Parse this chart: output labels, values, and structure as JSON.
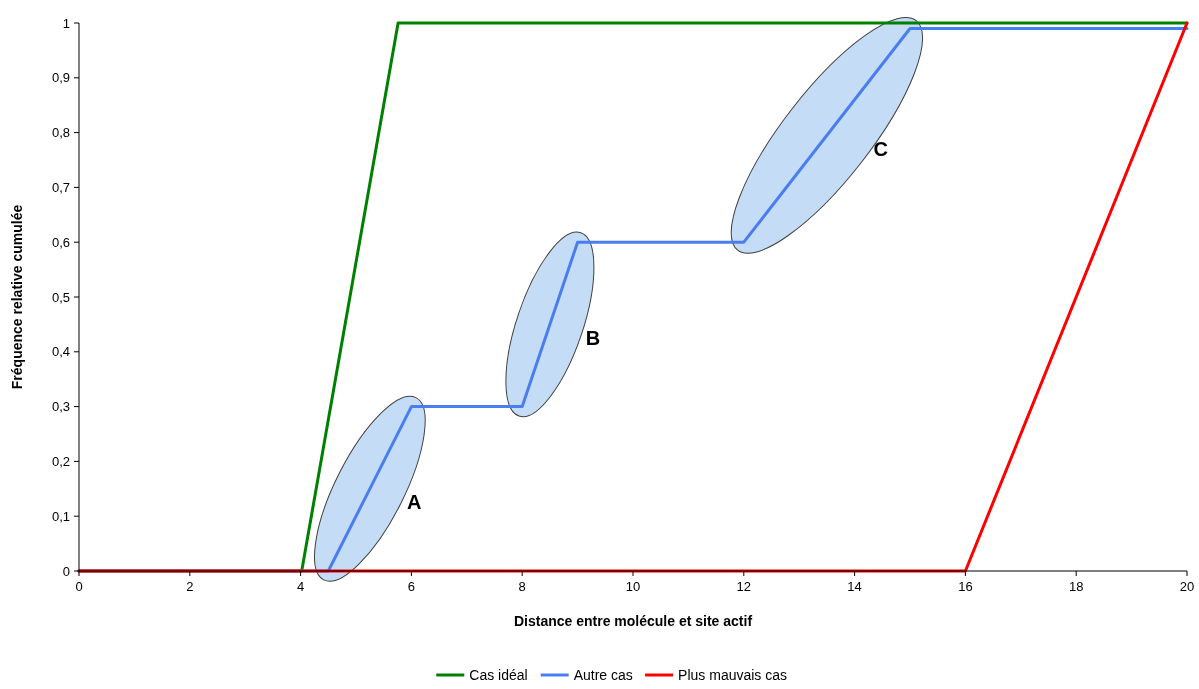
{
  "chart_data": {
    "type": "line",
    "xlabel": "Distance entre molécule et site actif",
    "ylabel": "Fréquence relative cumulée",
    "xlim": [
      0,
      20
    ],
    "xticks": [
      0,
      2,
      4,
      6,
      8,
      10,
      12,
      14,
      16,
      18,
      20
    ],
    "ylim": [
      0,
      1
    ],
    "yticks": [
      0,
      {
        "value": 0.1,
        "label": "0,1"
      },
      {
        "value": 0.2,
        "label": "0,2"
      },
      {
        "value": 0.3,
        "label": "0,3"
      },
      {
        "value": 0.4,
        "label": "0,4"
      },
      {
        "value": 0.5,
        "label": "0,5"
      },
      {
        "value": 0.6,
        "label": "0,6"
      },
      {
        "value": 0.7,
        "label": "0,7"
      },
      {
        "value": 0.8,
        "label": "0,8"
      },
      {
        "value": 0.9,
        "label": "0,9"
      },
      1
    ],
    "series": [
      {
        "name": "Cas idéal",
        "color": "#008000",
        "x": [
          0,
          4.02,
          5.76,
          20
        ],
        "values": [
          0,
          0,
          1,
          1
        ]
      },
      {
        "name": "Autre cas",
        "color": "#4a7ef0",
        "x": [
          0,
          4.5,
          6,
          8,
          9,
          12,
          15,
          20
        ],
        "values": [
          0,
          0,
          0.3,
          0.3,
          0.6,
          0.6,
          0.99,
          0.99
        ]
      },
      {
        "name": "Plus mauvais cas",
        "color": "#ff0000",
        "x": [
          0,
          16,
          20
        ],
        "values": [
          0,
          0,
          1
        ]
      }
    ],
    "annotations": [
      "A",
      "B",
      "C"
    ],
    "legend": "bottom",
    "grid": false,
    "marker": "none",
    "line_style": "solid"
  }
}
